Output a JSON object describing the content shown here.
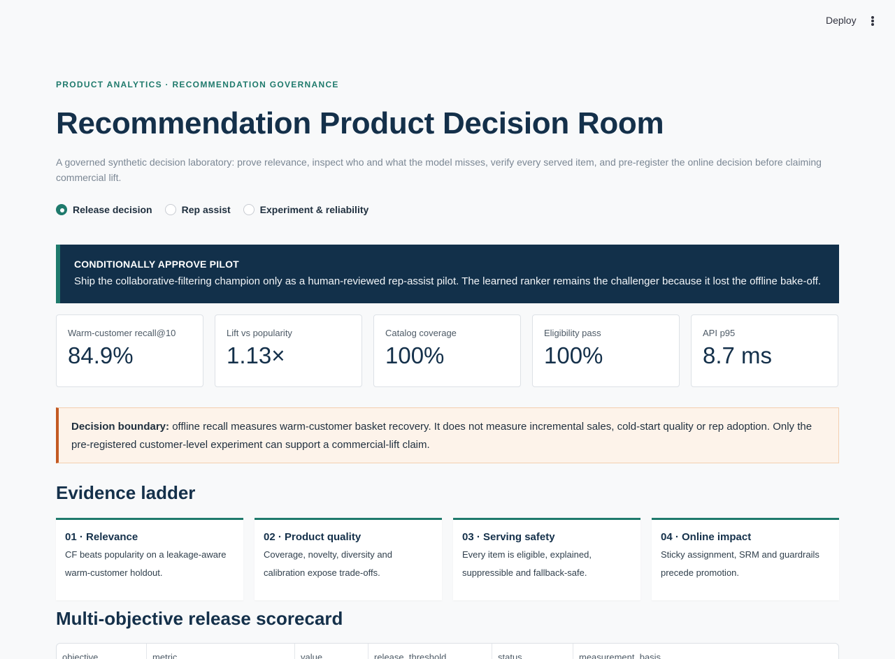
{
  "toolbar": {
    "deploy_label": "Deploy",
    "menu_icon": "kebab-menu-icon"
  },
  "header": {
    "eyebrow": "PRODUCT ANALYTICS · RECOMMENDATION GOVERNANCE",
    "title": "Recommendation Product Decision Room",
    "subtitle": "A governed synthetic decision laboratory: prove relevance, inspect who and what the model misses, verify every served item, and pre-register the online decision before claiming commercial lift."
  },
  "view_selector": {
    "options": [
      {
        "label": "Release decision",
        "selected": true
      },
      {
        "label": "Rep assist",
        "selected": false
      },
      {
        "label": "Experiment & reliability",
        "selected": false
      }
    ]
  },
  "decision_banner": {
    "title": "CONDITIONALLY APPROVE PILOT",
    "text": "Ship the collaborative-filtering champion only as a human-reviewed rep-assist pilot. The learned ranker remains the challenger because it lost the offline bake-off."
  },
  "metrics": [
    {
      "label": "Warm-customer recall@10",
      "value": "84.9%"
    },
    {
      "label": "Lift vs popularity",
      "value": "1.13×"
    },
    {
      "label": "Catalog coverage",
      "value": "100%"
    },
    {
      "label": "Eligibility pass",
      "value": "100%"
    },
    {
      "label": "API p95",
      "value": "8.7 ms"
    }
  ],
  "boundary": {
    "lead": "Decision boundary:",
    "text": " offline recall measures warm-customer basket recovery. It does not measure incremental sales, cold-start quality or rep adoption. Only the pre-registered customer-level experiment can support a commercial-lift claim."
  },
  "evidence_ladder": {
    "title": "Evidence ladder",
    "rungs": [
      {
        "title": "01 · Relevance",
        "text": "CF beats popularity on a leakage-aware warm-customer holdout."
      },
      {
        "title": "02 · Product quality",
        "text": "Coverage, novelty, diversity and calibration expose trade-offs."
      },
      {
        "title": "03 · Serving safety",
        "text": "Every item is eligible, explained, suppressible and fallback-safe."
      },
      {
        "title": "04 · Online impact",
        "text": "Sticky assignment, SRM and guardrails precede promotion."
      }
    ]
  },
  "scorecard": {
    "title": "Multi-objective release scorecard",
    "columns": [
      "objective",
      "metric",
      "value",
      "release_threshold",
      "status",
      "measurement_basis"
    ]
  },
  "colors": {
    "accent": "#1f7a6c",
    "banner_bg": "#12304a",
    "warning_border": "#c35a23",
    "warning_bg": "#fdf3ea"
  }
}
